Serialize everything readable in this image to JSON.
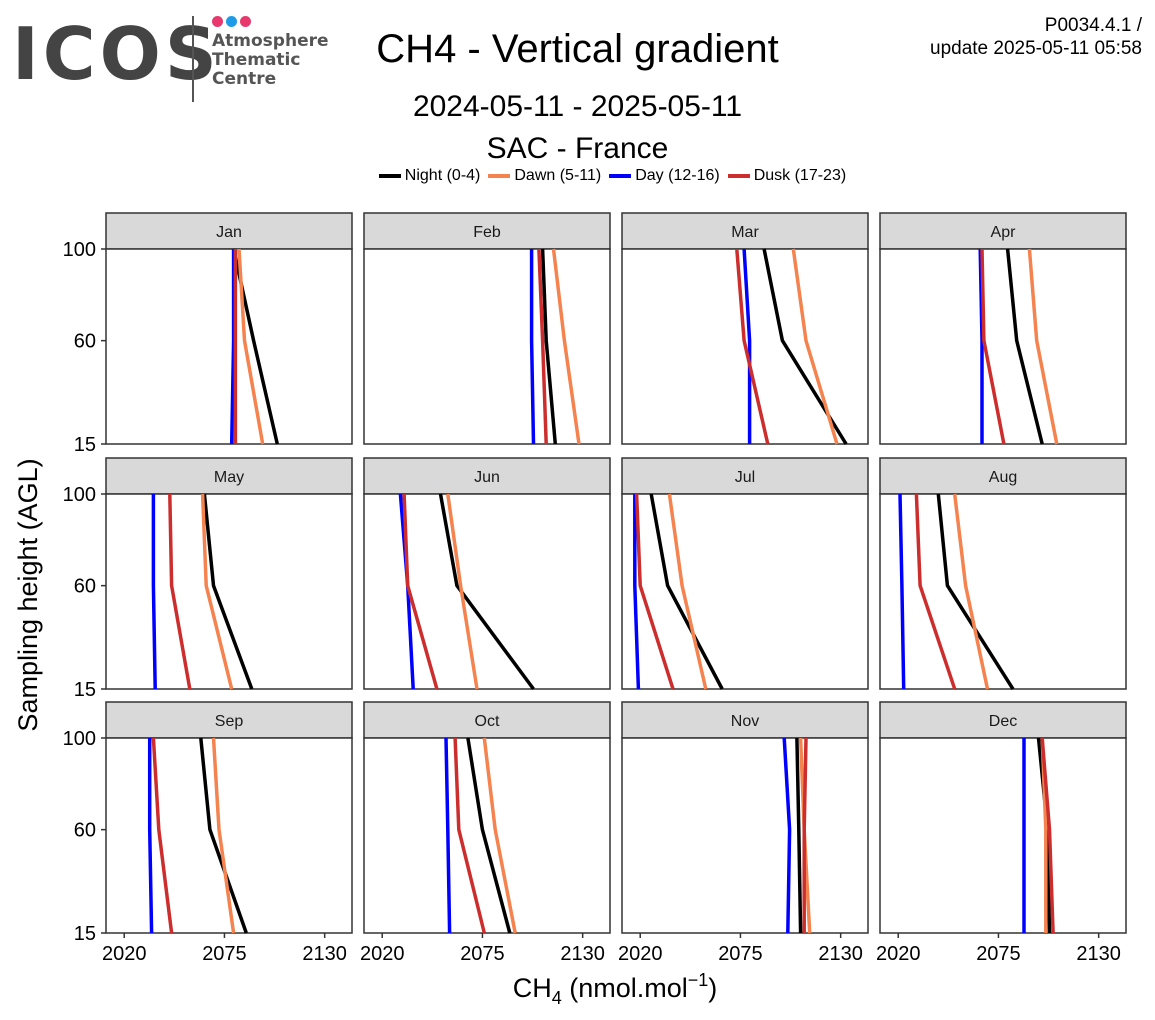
{
  "header": {
    "logo_text": "ICOS",
    "logo_sub": [
      "Atmosphere",
      "Thematic",
      "Centre"
    ],
    "logo_dot_colors": [
      "#e8386d",
      "#1e9be8",
      "#e8386d"
    ],
    "title": "CH4 - Vertical gradient",
    "period": "2024-05-11 - 2025-05-11",
    "site": "SAC - France",
    "version": "P0034.4.1 /",
    "update": "update  2025-05-11 05:58"
  },
  "chart_data": {
    "type": "line",
    "xlabel_main": "CH",
    "xlabel_sub": "4",
    "xlabel_rest": " (nmol.mol",
    "xlabel_sup": "−1",
    "xlabel_close": ")",
    "ylabel": "Sampling height (AGL)",
    "xlim": [
      2010,
      2145
    ],
    "x_ticks": [
      2020,
      2075,
      2130
    ],
    "y_ticks": [
      15,
      60,
      100
    ],
    "y_positions": {
      "15": 0,
      "60": 0.53,
      "100": 1
    },
    "heights": [
      15,
      60,
      100
    ],
    "grid": false,
    "legend_position": "top",
    "series": [
      {
        "name": "Night (0-4)",
        "color": "#000000"
      },
      {
        "name": "Dawn (5-11)",
        "color": "#f4834f"
      },
      {
        "name": "Day (12-16)",
        "color": "#0000ff"
      },
      {
        "name": "Dusk (17-23)",
        "color": "#cc2e2e"
      }
    ],
    "panels": [
      {
        "month": "Jan",
        "values": [
          [
            2104,
            2091,
            2080
          ],
          [
            2096,
            2086,
            2083
          ],
          [
            2079,
            2080,
            2080
          ],
          [
            2081,
            2081,
            2081
          ]
        ]
      },
      {
        "month": "Feb",
        "values": [
          [
            2115,
            2110,
            2108
          ],
          [
            2128,
            2120,
            2114
          ],
          [
            2103,
            2102,
            2102
          ],
          [
            2110,
            2108,
            2106
          ]
        ]
      },
      {
        "month": "Mar",
        "values": [
          [
            2133,
            2098,
            2088
          ],
          [
            2128,
            2111,
            2104
          ],
          [
            2080,
            2080,
            2077
          ],
          [
            2090,
            2077,
            2073
          ]
        ]
      },
      {
        "month": "Apr",
        "values": [
          [
            2099,
            2085,
            2080
          ],
          [
            2107,
            2096,
            2092
          ],
          [
            2066,
            2066,
            2065
          ],
          [
            2078,
            2067,
            2066
          ]
        ]
      },
      {
        "month": "May",
        "values": [
          [
            2090,
            2069,
            2064
          ],
          [
            2079,
            2065,
            2063
          ],
          [
            2037,
            2036,
            2036
          ],
          [
            2056,
            2046,
            2045
          ]
        ]
      },
      {
        "month": "Jun",
        "values": [
          [
            2103,
            2061,
            2052
          ],
          [
            2072,
            2063,
            2056
          ],
          [
            2037,
            2034,
            2030
          ],
          [
            2050,
            2034,
            2032
          ]
        ]
      },
      {
        "month": "Jul",
        "values": [
          [
            2065,
            2035,
            2026
          ],
          [
            2056,
            2043,
            2036
          ],
          [
            2019,
            2017,
            2017
          ],
          [
            2038,
            2020,
            2018
          ]
        ]
      },
      {
        "month": "Aug",
        "values": [
          [
            2083,
            2047,
            2042
          ],
          [
            2069,
            2057,
            2051
          ],
          [
            2023,
            2022,
            2021
          ],
          [
            2051,
            2032,
            2030
          ]
        ]
      },
      {
        "month": "Sep",
        "values": [
          [
            2087,
            2067,
            2062
          ],
          [
            2080,
            2072,
            2069
          ],
          [
            2035,
            2034,
            2034
          ],
          [
            2046,
            2039,
            2036
          ]
        ]
      },
      {
        "month": "Oct",
        "values": [
          [
            2090,
            2075,
            2067
          ],
          [
            2093,
            2082,
            2076
          ],
          [
            2057,
            2056,
            2055
          ],
          [
            2076,
            2062,
            2060
          ]
        ]
      },
      {
        "month": "Nov",
        "values": [
          [
            2108,
            2107,
            2106
          ],
          [
            2113,
            2110,
            2108
          ],
          [
            2101,
            2102,
            2099
          ],
          [
            2110,
            2110,
            2111
          ]
        ]
      },
      {
        "month": "Dec",
        "values": [
          [
            2103,
            2102,
            2097
          ],
          [
            2101,
            2101,
            2099
          ],
          [
            2089,
            2089,
            2089
          ],
          [
            2105,
            2103,
            2099
          ]
        ]
      }
    ]
  }
}
